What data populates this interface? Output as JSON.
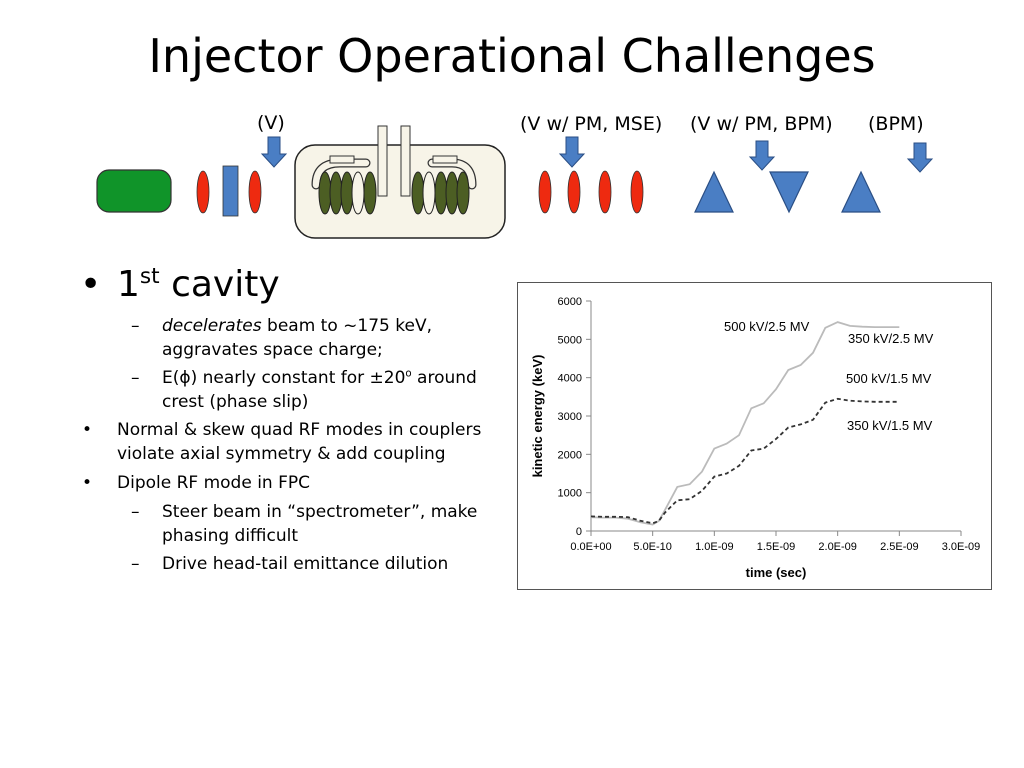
{
  "title": "Injector Operational Challenges",
  "diagram": {
    "labels": {
      "v": "(V)",
      "v_pm_mse": "(V w/ PM, MSE)",
      "v_pm_bpm": "(V w/ PM, BPM)",
      "bpm": "(BPM)"
    },
    "colors": {
      "gun": "#109429",
      "solenoid": "#ee2a10",
      "steerer": "#4a7ec4",
      "cavity_bg": "#f7f4e8",
      "cell": "#4c5e23"
    }
  },
  "bullets": {
    "b1_main": "1",
    "b1_sup": "st",
    "b1_rest": " cavity",
    "b1_sub1_em": "decelerates",
    "b1_sub1_rest": " beam to ~175 keV, aggravates space charge;",
    "b1_sub2_a": "E(",
    "b1_sub2_phi": "ϕ",
    "b1_sub2_b": ") nearly constant for ±20",
    "b1_sub2_sup": "o",
    "b1_sub2_c": " around crest (phase slip)",
    "b2": "Normal & skew quad RF modes in couplers violate axial symmetry & add coupling",
    "b3": "Dipole RF mode in FPC",
    "b3_sub1": "Steer beam in “spectrometer”, make phasing difficult",
    "b3_sub2": "Drive head-tail emittance dilution"
  },
  "chart_data": {
    "type": "line",
    "xlabel": "time (sec)",
    "ylabel": "kinetic energy (keV)",
    "xlim": [
      0,
      3e-09
    ],
    "ylim": [
      0,
      6000
    ],
    "xticks": [
      "0.0E+00",
      "5.0E-10",
      "1.0E-09",
      "1.5E-09",
      "2.0E-09",
      "2.5E-09",
      "3.0E-09"
    ],
    "yticks": [
      "0",
      "1000",
      "2000",
      "3000",
      "4000",
      "5000",
      "6000"
    ],
    "grid": false,
    "legend": "none",
    "annotations": [
      "500 kV/2.5 MV",
      "350 kV/2.5 MV",
      "500 kV/1.5 MV",
      "350 kV/1.5 MV"
    ],
    "series": [
      {
        "style": "solid",
        "color": "#bbbbbb",
        "x": [
          0,
          1e-10,
          2e-10,
          3e-10,
          4e-10,
          5e-10,
          5.5e-10,
          6e-10,
          7e-10,
          8e-10,
          9e-10,
          1e-09,
          1.1e-09,
          1.2e-09,
          1.3e-09,
          1.4e-09,
          1.5e-09,
          1.6e-09,
          1.7e-09,
          1.8e-09,
          1.9e-09,
          2e-09,
          2.1e-09,
          2.2e-09,
          2.3e-09,
          2.4e-09,
          2.5e-09
        ],
        "y": [
          360,
          350,
          350,
          320,
          230,
          170,
          260,
          550,
          1150,
          1220,
          1550,
          2150,
          2280,
          2500,
          3200,
          3330,
          3700,
          4200,
          4330,
          4650,
          5300,
          5450,
          5350,
          5330,
          5320,
          5320,
          5320
        ]
      },
      {
        "style": "dashed",
        "color": "#333333",
        "x": [
          0,
          1e-10,
          2e-10,
          3e-10,
          4e-10,
          5e-10,
          5.5e-10,
          6e-10,
          7e-10,
          8e-10,
          9e-10,
          1e-09,
          1.1e-09,
          1.2e-09,
          1.3e-09,
          1.4e-09,
          1.5e-09,
          1.6e-09,
          1.7e-09,
          1.8e-09,
          1.9e-09,
          2e-09,
          2.1e-09,
          2.2e-09,
          2.3e-09,
          2.4e-09,
          2.5e-09
        ],
        "y": [
          380,
          370,
          370,
          360,
          270,
          200,
          260,
          480,
          800,
          830,
          1050,
          1420,
          1500,
          1700,
          2100,
          2150,
          2400,
          2700,
          2780,
          2900,
          3350,
          3450,
          3400,
          3380,
          3370,
          3370,
          3370
        ]
      }
    ]
  }
}
